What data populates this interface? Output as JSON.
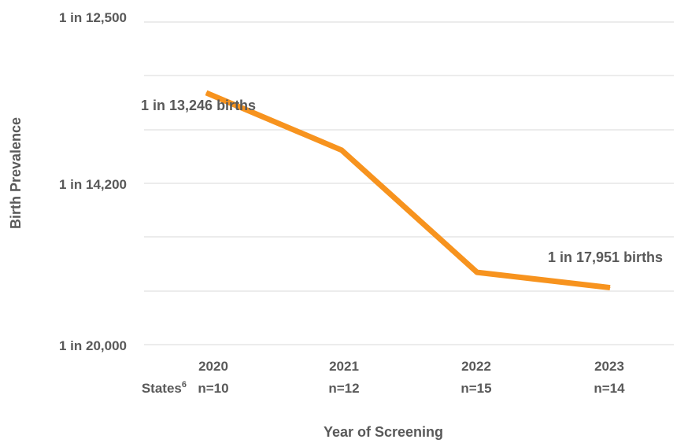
{
  "chart_data": {
    "type": "line",
    "xlabel": "Year of Screening",
    "ylabel": "Birth Prevalence",
    "x_sublabel_title": "States",
    "x_sublabel_superscript": "6",
    "categories": [
      "2020",
      "2021",
      "2022",
      "2023"
    ],
    "category_sublabels": [
      "n=10",
      "n=12",
      "n=15",
      "n=14"
    ],
    "y_ticks": [
      "1 in 12,500",
      "1 in 14,200",
      "1 in 20,000"
    ],
    "series": [
      {
        "values": [
          13246,
          13850,
          17400,
          17951
        ],
        "color": "#f7931e"
      }
    ],
    "data_labels": [
      {
        "index": 0,
        "text": "1 in 13,246 births"
      },
      {
        "index": 3,
        "text": "1 in 17,951 births"
      }
    ],
    "grid": true
  }
}
